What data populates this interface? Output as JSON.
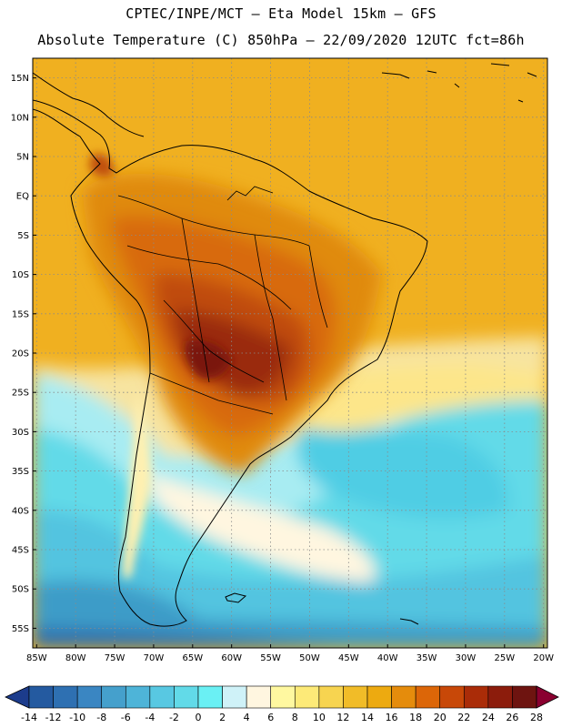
{
  "header": {
    "line1": "CPTEC/INPE/MCT –  Eta Model 15km – GFS",
    "line2": "Absolute Temperature (C) 850hPa – 22/09/2020 12UTC fct=86h"
  },
  "map": {
    "lat_labels": [
      "15N",
      "10N",
      "5N",
      "EQ",
      "5S",
      "10S",
      "15S",
      "20S",
      "25S",
      "30S",
      "35S",
      "40S",
      "45S",
      "50S",
      "55S"
    ],
    "lat_values": [
      15,
      10,
      5,
      0,
      -5,
      -10,
      -15,
      -20,
      -25,
      -30,
      -35,
      -40,
      -45,
      -50,
      -55
    ],
    "lon_labels": [
      "85W",
      "80W",
      "75W",
      "70W",
      "65W",
      "60W",
      "55W",
      "50W",
      "45W",
      "40W",
      "35W",
      "30W",
      "25W",
      "20W"
    ],
    "lon_values": [
      -85,
      -80,
      -75,
      -70,
      -65,
      -60,
      -55,
      -50,
      -45,
      -40,
      -35,
      -30,
      -25,
      -20
    ],
    "lon_range": [
      -85.5,
      -19.5
    ],
    "lat_range": [
      -57.5,
      17.5
    ]
  },
  "colorbar": {
    "ticks": [
      "-14",
      "-12",
      "-10",
      "-8",
      "-6",
      "-4",
      "-2",
      "0",
      "2",
      "4",
      "6",
      "8",
      "10",
      "12",
      "14",
      "16",
      "18",
      "20",
      "22",
      "24",
      "26",
      "28"
    ],
    "colors": [
      "#1c3c8c",
      "#245aa0",
      "#2e70b2",
      "#3a86c2",
      "#45a0cc",
      "#4eb4d8",
      "#58c8e2",
      "#62dae8",
      "#6af0f4",
      "#cff2f8",
      "#fff6e0",
      "#fff8a0",
      "#fdea78",
      "#f7d450",
      "#f1bc28",
      "#edaa10",
      "#e58c0c",
      "#dc6608",
      "#c84808",
      "#aa2c08",
      "#8c1c0c",
      "#6e1410",
      "#8a0030"
    ]
  }
}
